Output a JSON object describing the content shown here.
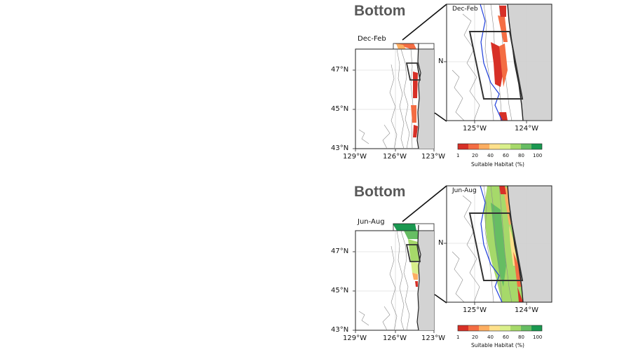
{
  "panels": [
    {
      "heading": "Bottom",
      "season": "Dec-Feb",
      "lat_ticks": [
        "47°N",
        "45°N",
        "43°N"
      ],
      "lon_ticks": [
        "129°W",
        "126°W",
        "123°W"
      ],
      "inset_lat_tick": "N",
      "inset_lon_ticks": [
        "125°W",
        "124°W"
      ],
      "colorbar": {
        "ticks": [
          "1",
          "20",
          "40",
          "60",
          "80",
          "100"
        ],
        "title": "Suitable Habitat (%)"
      }
    },
    {
      "heading": "Bottom",
      "season": "Jun-Aug",
      "lat_ticks": [
        "47°N",
        "45°N",
        "43°N"
      ],
      "lon_ticks": [
        "129°W",
        "126°W",
        "123°W"
      ],
      "inset_lat_tick": "N",
      "inset_lon_ticks": [
        "125°W",
        "124°W"
      ],
      "colorbar": {
        "ticks": [
          "1",
          "20",
          "40",
          "60",
          "80",
          "100"
        ],
        "title": "Suitable Habitat (%)"
      }
    }
  ],
  "colors": {
    "land": "#d3d3d3",
    "colormap": [
      "#d73027",
      "#f46d43",
      "#fdae61",
      "#fee08b",
      "#d9ef8b",
      "#a6d96a",
      "#66bd63",
      "#1a9850"
    ],
    "boundary_line": "#1f3fdc"
  }
}
